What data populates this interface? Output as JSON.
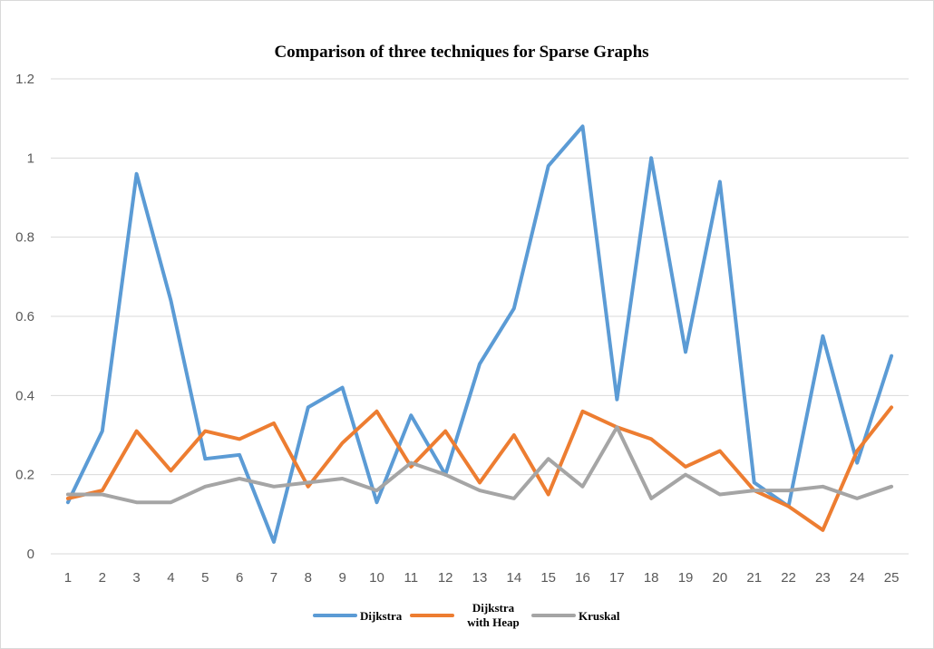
{
  "chart_data": {
    "type": "line",
    "title": "Comparison of three techniques for Sparse Graphs",
    "xlabel": "",
    "ylabel": "",
    "categories": [
      "1",
      "2",
      "3",
      "4",
      "5",
      "6",
      "7",
      "8",
      "9",
      "10",
      "11",
      "12",
      "13",
      "14",
      "15",
      "16",
      "17",
      "18",
      "19",
      "20",
      "21",
      "22",
      "23",
      "24",
      "25"
    ],
    "ylim": [
      0,
      1.2
    ],
    "yticks": [
      "0",
      "0.2",
      "0.4",
      "0.6",
      "0.8",
      "1",
      "1.2"
    ],
    "grid": true,
    "legend_position": "bottom",
    "series": [
      {
        "name": "Dijkstra",
        "color": "#5b9bd5",
        "values": [
          0.13,
          0.31,
          0.96,
          0.64,
          0.24,
          0.25,
          0.03,
          0.37,
          0.42,
          0.13,
          0.35,
          0.2,
          0.48,
          0.62,
          0.98,
          1.08,
          0.39,
          1.0,
          0.51,
          0.94,
          0.18,
          0.12,
          0.55,
          0.23,
          0.5
        ]
      },
      {
        "name": "Dijkstra with  Heap",
        "legend_lines": [
          "Dijkstra",
          "with  Heap"
        ],
        "color": "#ed7d31",
        "values": [
          0.14,
          0.16,
          0.31,
          0.21,
          0.31,
          0.29,
          0.33,
          0.17,
          0.28,
          0.36,
          0.22,
          0.31,
          0.18,
          0.3,
          0.15,
          0.36,
          0.32,
          0.29,
          0.22,
          0.26,
          0.16,
          0.12,
          0.06,
          0.26,
          0.37
        ]
      },
      {
        "name": "Kruskal",
        "color": "#a5a5a5",
        "values": [
          0.15,
          0.15,
          0.13,
          0.13,
          0.17,
          0.19,
          0.17,
          0.18,
          0.19,
          0.16,
          0.23,
          0.2,
          0.16,
          0.14,
          0.24,
          0.17,
          0.32,
          0.14,
          0.2,
          0.15,
          0.16,
          0.16,
          0.17,
          0.14,
          0.17
        ]
      }
    ]
  }
}
